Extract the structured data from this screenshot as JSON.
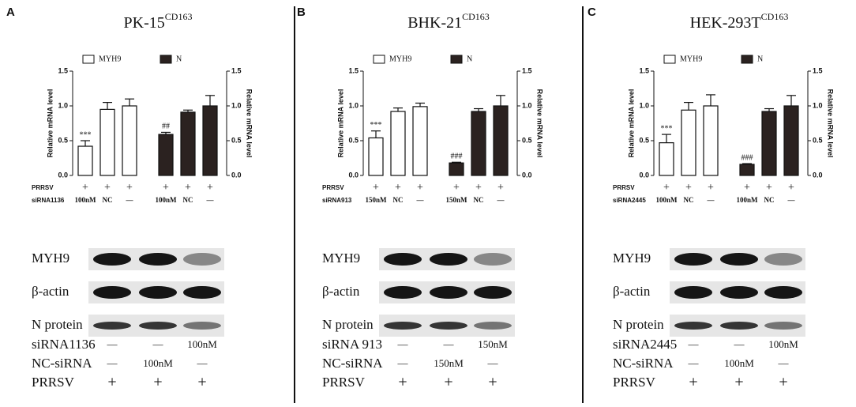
{
  "panel_labels": [
    "A",
    "B",
    "C"
  ],
  "chart_data": [
    {
      "type": "bar",
      "title": "PK-15",
      "title_sup": "CD163",
      "ylabel": "Relative mRNA level",
      "y2label": "Relative mRNA level",
      "ylim": [
        0,
        1.5
      ],
      "yticks": [
        {
          "value": 0,
          "label": "0.0"
        },
        {
          "value": 0.5,
          "label": "0.5"
        },
        {
          "value": 1,
          "label": "1.0"
        },
        1.5
      ],
      "y2lim": [
        0,
        1.5
      ],
      "y2ticks": [
        {
          "value": 0,
          "label": "0.0"
        },
        {
          "value": 0.5,
          "label": "0.5"
        },
        {
          "value": 1,
          "label": "1.0"
        },
        1.5
      ],
      "series": [
        {
          "name": "MYH9",
          "color": "#ffffff",
          "values": [
            0.42,
            0.95,
            1.0,
            null,
            null,
            null
          ],
          "errors": [
            0.08,
            0.1,
            0.1,
            null,
            null,
            null
          ],
          "annotations": [
            "***",
            null,
            null,
            null,
            null,
            null
          ]
        },
        {
          "name": "N",
          "color": "#2b2220",
          "axis": "y2",
          "values": [
            null,
            null,
            null,
            0.59,
            0.91,
            1.0
          ],
          "errors": [
            null,
            null,
            null,
            0.03,
            0.03,
            0.15
          ],
          "annotations": [
            null,
            null,
            null,
            "##",
            null,
            null
          ]
        }
      ],
      "treatment_rows": [
        {
          "label": "PRRSV",
          "values": [
            "+",
            "+",
            "+",
            "+",
            "+",
            "+"
          ]
        },
        {
          "label": "siRNA1136",
          "values": [
            "100nM",
            "NC",
            "—",
            "100nM",
            "NC",
            "—"
          ]
        }
      ]
    },
    {
      "type": "bar",
      "title": "BHK-21",
      "title_sup": "CD163",
      "ylabel": "Relative mRNA level",
      "y2label": "Relative mRNA level",
      "ylim": [
        0,
        1.5
      ],
      "yticks": [
        {
          "value": 0,
          "label": "0.0"
        },
        {
          "value": 0.5,
          "label": "0.5"
        },
        {
          "value": 1,
          "label": "1.0"
        },
        1.5
      ],
      "y2lim": [
        0,
        1.5
      ],
      "y2ticks": [
        {
          "value": 0,
          "label": "0.0"
        },
        {
          "value": 0.5,
          "label": "0.5"
        },
        {
          "value": 1,
          "label": "1.0"
        },
        1.5
      ],
      "series": [
        {
          "name": "MYH9",
          "color": "#ffffff",
          "values": [
            0.54,
            0.92,
            0.99,
            null,
            null,
            null
          ],
          "errors": [
            0.1,
            0.05,
            0.05,
            null,
            null,
            null
          ],
          "annotations": [
            "***",
            null,
            null,
            null,
            null,
            null
          ]
        },
        {
          "name": "N",
          "color": "#2b2220",
          "axis": "y2",
          "values": [
            null,
            null,
            null,
            0.18,
            0.92,
            1.0
          ],
          "errors": [
            null,
            null,
            null,
            0.01,
            0.04,
            0.15
          ],
          "annotations": [
            null,
            null,
            null,
            "###",
            null,
            null
          ]
        }
      ],
      "treatment_rows": [
        {
          "label": "PRRSV",
          "values": [
            "+",
            "+",
            "+",
            "+",
            "+",
            "+"
          ]
        },
        {
          "label": "siRNA913",
          "values": [
            "150nM",
            "NC",
            "—",
            "150nM",
            "NC",
            "—"
          ]
        }
      ]
    },
    {
      "type": "bar",
      "title": "HEK-293T",
      "title_sup": "CD163",
      "ylabel": "Relative mRNA level",
      "y2label": "Relative mRNA level",
      "ylim": [
        0,
        1.5
      ],
      "yticks": [
        {
          "value": 0,
          "label": "0.0"
        },
        {
          "value": 0.5,
          "label": "0.5"
        },
        {
          "value": 1,
          "label": "1.0"
        },
        1.5
      ],
      "y2lim": [
        0,
        1.5
      ],
      "y2ticks": [
        {
          "value": 0,
          "label": "0.0"
        },
        {
          "value": 0.5,
          "label": "0.5"
        },
        {
          "value": 1,
          "label": "1.0"
        },
        1.5
      ],
      "series": [
        {
          "name": "MYH9",
          "color": "#ffffff",
          "values": [
            0.47,
            0.94,
            1.0,
            null,
            null,
            null
          ],
          "errors": [
            0.12,
            0.11,
            0.16,
            null,
            null,
            null
          ],
          "annotations": [
            "***",
            null,
            null,
            null,
            null,
            null
          ]
        },
        {
          "name": "N",
          "color": "#2b2220",
          "axis": "y2",
          "values": [
            null,
            null,
            null,
            0.16,
            0.92,
            1.0
          ],
          "errors": [
            null,
            null,
            null,
            0.01,
            0.04,
            0.15
          ],
          "annotations": [
            null,
            null,
            null,
            "###",
            null,
            null
          ]
        }
      ],
      "treatment_rows": [
        {
          "label": "PRRSV",
          "values": [
            "+",
            "+",
            "+",
            "+",
            "+",
            "+"
          ]
        },
        {
          "label": "siRNA2445",
          "values": [
            "100nM",
            "NC",
            "—",
            "100nM",
            "NC",
            "—"
          ]
        }
      ]
    }
  ],
  "blots": [
    {
      "bands": [
        "MYH9",
        "β-actin",
        "N protein"
      ],
      "treatment_rows": [
        {
          "label": "siRNA1136",
          "values": [
            "—",
            "—",
            "100nM"
          ]
        },
        {
          "label": "NC-siRNA",
          "values": [
            "—",
            "100nM",
            "—"
          ]
        },
        {
          "label": "PRRSV",
          "values": [
            "+",
            "+",
            "+"
          ]
        }
      ]
    },
    {
      "bands": [
        "MYH9",
        "β-actin",
        "N protein"
      ],
      "treatment_rows": [
        {
          "label": "siRNA 913",
          "values": [
            "—",
            "—",
            "150nM"
          ]
        },
        {
          "label": "NC-siRNA",
          "values": [
            "—",
            "150nM",
            "—"
          ]
        },
        {
          "label": "PRRSV",
          "values": [
            "+",
            "+",
            "+"
          ]
        }
      ]
    },
    {
      "bands": [
        "MYH9",
        "β-actin",
        "N protein"
      ],
      "treatment_rows": [
        {
          "label": "siRNA2445",
          "values": [
            "—",
            "—",
            "100nM"
          ]
        },
        {
          "label": "NC-siRNA",
          "values": [
            "—",
            "100nM",
            "—"
          ]
        },
        {
          "label": "PRRSV",
          "values": [
            "+",
            "+",
            "+"
          ]
        }
      ]
    }
  ]
}
